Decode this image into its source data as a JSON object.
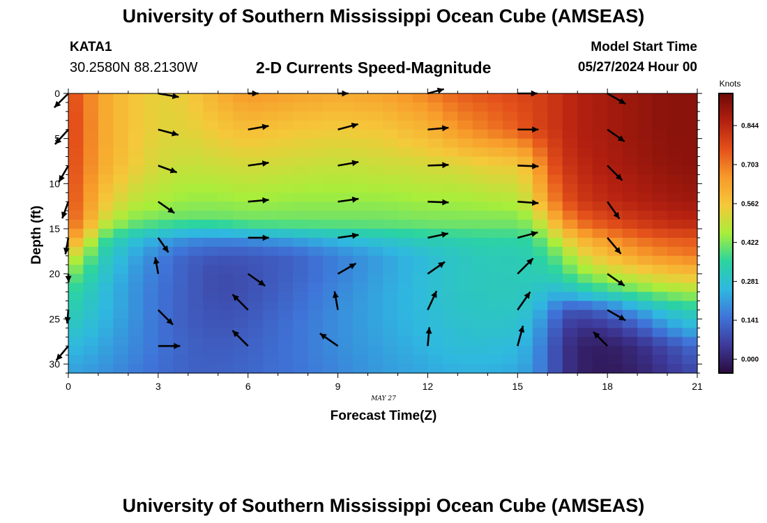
{
  "header": {
    "title": "University of Southern Mississippi Ocean Cube (AMSEAS)",
    "station": "KATA1",
    "coordinates": "30.2580N  88.2130W",
    "subtitle": "2-D Currents Speed-Magnitude",
    "model_start_label": "Model Start Time",
    "model_start_value": "05/27/2024 Hour 00"
  },
  "footer": {
    "title": "University of Southern Mississippi Ocean Cube (AMSEAS)"
  },
  "chart_data": {
    "type": "heatmap",
    "title": "2-D Currents Speed-Magnitude",
    "xlabel": "Forecast Time(Z)",
    "ylabel": "Depth (ft)",
    "date_label": "MAY 27",
    "x_ticks": [
      0,
      3,
      6,
      9,
      12,
      15,
      18,
      21
    ],
    "y_ticks": [
      0,
      5,
      10,
      15,
      20,
      25,
      30
    ],
    "xlim": [
      0,
      21
    ],
    "ylim": [
      0,
      31
    ],
    "y_inverted": true,
    "colorbar": {
      "units": "Knots",
      "ticks": [
        "0.000",
        "0.141",
        "0.281",
        "0.422",
        "0.562",
        "0.703",
        "0.844"
      ],
      "range": [
        -0.05,
        0.96
      ],
      "colors": [
        "#2b0a3d",
        "#3e3a9a",
        "#3f74d8",
        "#2fb8e0",
        "#2bd4a0",
        "#a8ee3a",
        "#f5c83a",
        "#f79a2a",
        "#e4511a",
        "#b42010",
        "#6e0a08"
      ]
    },
    "depths": [
      0,
      4,
      8,
      12,
      16,
      20,
      24,
      28
    ],
    "times": [
      0,
      3,
      6,
      9,
      12,
      15,
      18
    ],
    "speed_profile_times": [
      0,
      0.5,
      1,
      2,
      3,
      4,
      5,
      6,
      7.5,
      9,
      10.5,
      12,
      13,
      14,
      15,
      15.5,
      16,
      16.5,
      17,
      18,
      19,
      20,
      21
    ],
    "speed_profile_depths": [
      0,
      4,
      8,
      12,
      14,
      15,
      16,
      18,
      20,
      22,
      24,
      26,
      28,
      31
    ],
    "speed_grid": [
      [
        0.78,
        0.72,
        0.64,
        0.57,
        0.53,
        0.55,
        0.61,
        0.66,
        0.64,
        0.62,
        0.64,
        0.69,
        0.74,
        0.76,
        0.78,
        0.79,
        0.8,
        0.83,
        0.86,
        0.88,
        0.9,
        0.92,
        0.92
      ],
      [
        0.79,
        0.73,
        0.64,
        0.57,
        0.53,
        0.53,
        0.56,
        0.58,
        0.56,
        0.55,
        0.56,
        0.6,
        0.66,
        0.7,
        0.74,
        0.78,
        0.8,
        0.83,
        0.86,
        0.88,
        0.9,
        0.92,
        0.92
      ],
      [
        0.78,
        0.72,
        0.63,
        0.56,
        0.51,
        0.49,
        0.5,
        0.51,
        0.5,
        0.49,
        0.5,
        0.51,
        0.52,
        0.54,
        0.55,
        0.6,
        0.74,
        0.8,
        0.84,
        0.87,
        0.89,
        0.91,
        0.92
      ],
      [
        0.76,
        0.7,
        0.58,
        0.49,
        0.46,
        0.44,
        0.44,
        0.45,
        0.44,
        0.44,
        0.44,
        0.45,
        0.45,
        0.46,
        0.47,
        0.52,
        0.66,
        0.74,
        0.8,
        0.84,
        0.86,
        0.88,
        0.89
      ],
      [
        0.74,
        0.68,
        0.53,
        0.43,
        0.41,
        0.4,
        0.4,
        0.41,
        0.41,
        0.41,
        0.41,
        0.42,
        0.42,
        0.42,
        0.42,
        0.45,
        0.56,
        0.66,
        0.73,
        0.78,
        0.81,
        0.84,
        0.85
      ],
      [
        0.71,
        0.64,
        0.48,
        0.38,
        0.34,
        0.31,
        0.31,
        0.34,
        0.36,
        0.37,
        0.38,
        0.39,
        0.4,
        0.4,
        0.4,
        0.42,
        0.5,
        0.6,
        0.68,
        0.74,
        0.78,
        0.81,
        0.82
      ],
      [
        0.66,
        0.58,
        0.4,
        0.3,
        0.24,
        0.2,
        0.19,
        0.2,
        0.23,
        0.27,
        0.3,
        0.33,
        0.34,
        0.35,
        0.35,
        0.37,
        0.44,
        0.52,
        0.6,
        0.67,
        0.72,
        0.75,
        0.76
      ],
      [
        0.52,
        0.45,
        0.34,
        0.24,
        0.17,
        0.12,
        0.1,
        0.1,
        0.12,
        0.17,
        0.22,
        0.27,
        0.3,
        0.32,
        0.32,
        0.33,
        0.37,
        0.42,
        0.5,
        0.58,
        0.64,
        0.68,
        0.7
      ],
      [
        0.42,
        0.38,
        0.31,
        0.22,
        0.16,
        0.11,
        0.08,
        0.09,
        0.12,
        0.17,
        0.22,
        0.27,
        0.3,
        0.31,
        0.32,
        0.32,
        0.33,
        0.36,
        0.42,
        0.48,
        0.52,
        0.56,
        0.58
      ],
      [
        0.36,
        0.33,
        0.28,
        0.21,
        0.15,
        0.11,
        0.08,
        0.09,
        0.13,
        0.18,
        0.23,
        0.27,
        0.3,
        0.31,
        0.31,
        0.3,
        0.27,
        0.26,
        0.3,
        0.35,
        0.4,
        0.44,
        0.46
      ],
      [
        0.33,
        0.31,
        0.27,
        0.21,
        0.15,
        0.11,
        0.09,
        0.1,
        0.14,
        0.19,
        0.23,
        0.27,
        0.29,
        0.3,
        0.3,
        0.27,
        0.2,
        0.12,
        0.09,
        0.14,
        0.22,
        0.3,
        0.34
      ],
      [
        0.3,
        0.28,
        0.25,
        0.2,
        0.15,
        0.11,
        0.1,
        0.11,
        0.15,
        0.19,
        0.23,
        0.26,
        0.28,
        0.29,
        0.28,
        0.24,
        0.16,
        0.07,
        0.03,
        0.04,
        0.1,
        0.2,
        0.26
      ],
      [
        0.26,
        0.25,
        0.23,
        0.19,
        0.15,
        0.12,
        0.11,
        0.12,
        0.15,
        0.19,
        0.22,
        0.25,
        0.27,
        0.27,
        0.26,
        0.22,
        0.13,
        0.05,
        0.0,
        -0.01,
        0.02,
        0.08,
        0.14
      ],
      [
        0.22,
        0.21,
        0.2,
        0.17,
        0.14,
        0.12,
        0.12,
        0.13,
        0.15,
        0.18,
        0.21,
        0.23,
        0.24,
        0.24,
        0.23,
        0.2,
        0.13,
        0.05,
        0.0,
        -0.02,
        0.0,
        0.04,
        0.08
      ]
    ],
    "arrows": [
      {
        "t": 0,
        "d": 0,
        "dir_deg": 135,
        "len": 0.95
      },
      {
        "t": 0,
        "d": 4,
        "dir_deg": 132,
        "len": 0.95
      },
      {
        "t": 0,
        "d": 8,
        "dir_deg": 120,
        "len": 0.9
      },
      {
        "t": 0,
        "d": 12,
        "dir_deg": 110,
        "len": 0.85
      },
      {
        "t": 0,
        "d": 16,
        "dir_deg": 100,
        "len": 0.8
      },
      {
        "t": 0,
        "d": 20,
        "dir_deg": 88,
        "len": 0.4
      },
      {
        "t": 0,
        "d": 24,
        "dir_deg": 95,
        "len": 0.65
      },
      {
        "t": 0,
        "d": 28,
        "dir_deg": 130,
        "len": 0.9
      },
      {
        "t": 3,
        "d": 0,
        "dir_deg": 10,
        "len": 1.0
      },
      {
        "t": 3,
        "d": 4,
        "dir_deg": 15,
        "len": 1.0
      },
      {
        "t": 3,
        "d": 8,
        "dir_deg": 20,
        "len": 0.95
      },
      {
        "t": 3,
        "d": 12,
        "dir_deg": 35,
        "len": 0.95
      },
      {
        "t": 3,
        "d": 16,
        "dir_deg": 55,
        "len": 0.85
      },
      {
        "t": 3,
        "d": 20,
        "dir_deg": 260,
        "len": 0.8
      },
      {
        "t": 3,
        "d": 24,
        "dir_deg": 45,
        "len": 1.0
      },
      {
        "t": 3,
        "d": 28,
        "dir_deg": 0,
        "len": 1.05
      },
      {
        "t": 6,
        "d": 0,
        "dir_deg": 0,
        "len": 0.5
      },
      {
        "t": 6,
        "d": 4,
        "dir_deg": 350,
        "len": 1.0
      },
      {
        "t": 6,
        "d": 8,
        "dir_deg": 352,
        "len": 1.0
      },
      {
        "t": 6,
        "d": 12,
        "dir_deg": 355,
        "len": 1.0
      },
      {
        "t": 6,
        "d": 16,
        "dir_deg": 0,
        "len": 1.0
      },
      {
        "t": 6,
        "d": 20,
        "dir_deg": 35,
        "len": 1.0
      },
      {
        "t": 6,
        "d": 24,
        "dir_deg": 225,
        "len": 1.05
      },
      {
        "t": 6,
        "d": 28,
        "dir_deg": 225,
        "len": 1.05
      },
      {
        "t": 9,
        "d": 0,
        "dir_deg": 0,
        "len": 0.5
      },
      {
        "t": 9,
        "d": 4,
        "dir_deg": 345,
        "len": 1.0
      },
      {
        "t": 9,
        "d": 8,
        "dir_deg": 350,
        "len": 1.0
      },
      {
        "t": 9,
        "d": 12,
        "dir_deg": 352,
        "len": 1.0
      },
      {
        "t": 9,
        "d": 16,
        "dir_deg": 352,
        "len": 1.0
      },
      {
        "t": 9,
        "d": 20,
        "dir_deg": 330,
        "len": 1.0
      },
      {
        "t": 9,
        "d": 24,
        "dir_deg": 260,
        "len": 0.9
      },
      {
        "t": 9,
        "d": 28,
        "dir_deg": 215,
        "len": 1.05
      },
      {
        "t": 12,
        "d": 0,
        "dir_deg": 345,
        "len": 0.8
      },
      {
        "t": 12,
        "d": 4,
        "dir_deg": 355,
        "len": 1.0
      },
      {
        "t": 12,
        "d": 8,
        "dir_deg": 358,
        "len": 1.0
      },
      {
        "t": 12,
        "d": 12,
        "dir_deg": 2,
        "len": 1.0
      },
      {
        "t": 12,
        "d": 16,
        "dir_deg": 348,
        "len": 1.0
      },
      {
        "t": 12,
        "d": 20,
        "dir_deg": 325,
        "len": 1.0
      },
      {
        "t": 12,
        "d": 24,
        "dir_deg": 295,
        "len": 1.0
      },
      {
        "t": 12,
        "d": 28,
        "dir_deg": 275,
        "len": 0.9
      },
      {
        "t": 15,
        "d": 0,
        "dir_deg": 0,
        "len": 0.95
      },
      {
        "t": 15,
        "d": 4,
        "dir_deg": 0,
        "len": 1.0
      },
      {
        "t": 15,
        "d": 8,
        "dir_deg": 2,
        "len": 1.0
      },
      {
        "t": 15,
        "d": 12,
        "dir_deg": 4,
        "len": 1.0
      },
      {
        "t": 15,
        "d": 16,
        "dir_deg": 345,
        "len": 1.0
      },
      {
        "t": 15,
        "d": 20,
        "dir_deg": 315,
        "len": 1.05
      },
      {
        "t": 15,
        "d": 24,
        "dir_deg": 305,
        "len": 1.05
      },
      {
        "t": 15,
        "d": 28,
        "dir_deg": 285,
        "len": 1.0
      },
      {
        "t": 18,
        "d": 0,
        "dir_deg": 30,
        "len": 1.0
      },
      {
        "t": 18,
        "d": 4,
        "dir_deg": 35,
        "len": 1.0
      },
      {
        "t": 18,
        "d": 8,
        "dir_deg": 45,
        "len": 1.0
      },
      {
        "t": 18,
        "d": 12,
        "dir_deg": 55,
        "len": 1.0
      },
      {
        "t": 18,
        "d": 16,
        "dir_deg": 50,
        "len": 1.0
      },
      {
        "t": 18,
        "d": 20,
        "dir_deg": 35,
        "len": 1.0
      },
      {
        "t": 18,
        "d": 24,
        "dir_deg": 30,
        "len": 1.0
      },
      {
        "t": 18,
        "d": 28,
        "dir_deg": 225,
        "len": 0.95
      }
    ]
  }
}
